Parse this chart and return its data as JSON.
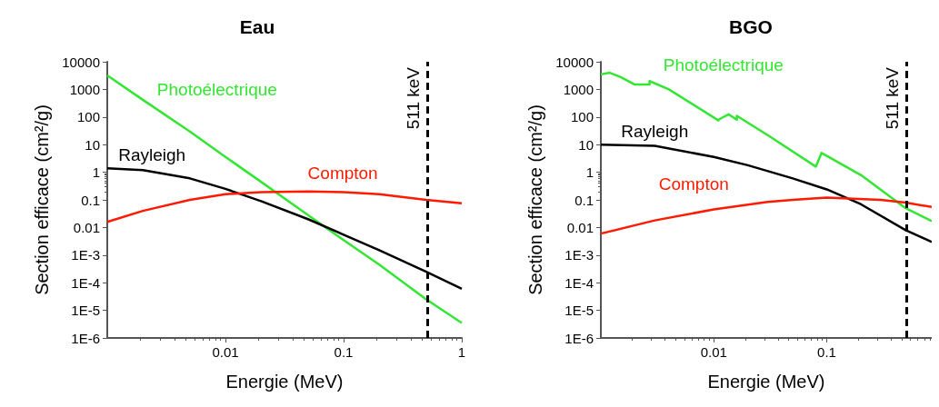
{
  "chart_data": [
    {
      "type": "line",
      "title": "Eau",
      "xlabel": "Energie (MeV)",
      "ylabel": "Section efficace (cm²/g)",
      "log": "xy",
      "grid": false,
      "legend": false,
      "marker": "none",
      "xlim": [
        0.001,
        1
      ],
      "xticks": [
        0.01,
        0.1,
        1
      ],
      "ylim": [
        1e-06,
        10000
      ],
      "yticks": [
        10000,
        1000,
        100,
        10,
        1,
        0.1,
        0.01,
        {
          "value": 0.001,
          "label": "1E-3"
        },
        {
          "value": 0.0001,
          "label": "1E-4"
        },
        {
          "value": 1e-05,
          "label": "1E-5"
        },
        {
          "value": 1e-06,
          "label": "1E-6"
        }
      ],
      "ref_lines": [
        {
          "axis": "x",
          "value": 0.511,
          "label": "511 keV",
          "line_style": "dashed",
          "color": "#000000"
        }
      ],
      "series": [
        {
          "name": "Photoélectrique",
          "color": "#33e633",
          "x": [
            0.001,
            0.002,
            0.005,
            0.01,
            0.02,
            0.05,
            0.1,
            0.2,
            0.5,
            1
          ],
          "values": [
            3200,
            420,
            30,
            3.6,
            0.45,
            0.028,
            0.0035,
            0.00045,
            2.5e-05,
            3.5e-06
          ]
        },
        {
          "name": "Rayleigh",
          "color": "#000000",
          "x": [
            0.001,
            0.002,
            0.005,
            0.01,
            0.02,
            0.05,
            0.1,
            0.2,
            0.5,
            1
          ],
          "values": [
            1.4,
            1.2,
            0.6,
            0.25,
            0.09,
            0.02,
            0.0055,
            0.0015,
            0.00025,
            6e-05
          ]
        },
        {
          "name": "Compton",
          "color": "#ff1a00",
          "x": [
            0.001,
            0.002,
            0.005,
            0.01,
            0.02,
            0.05,
            0.1,
            0.2,
            0.5,
            1
          ],
          "values": [
            0.016,
            0.04,
            0.1,
            0.16,
            0.19,
            0.2,
            0.19,
            0.16,
            0.1,
            0.075
          ]
        }
      ]
    },
    {
      "type": "line",
      "title": "BGO",
      "xlabel": "Energie (MeV)",
      "ylabel": "Section efficace (cm²/g)",
      "log": "xy",
      "grid": false,
      "legend": false,
      "marker": "none",
      "xlim": [
        0.001,
        0.85
      ],
      "xticks": [
        0.01,
        0.1
      ],
      "ylim": [
        1e-06,
        10000
      ],
      "yticks": [
        10000,
        1000,
        100,
        10,
        1,
        0.1,
        0.01,
        {
          "value": 0.001,
          "label": "1E-3"
        },
        {
          "value": 0.0001,
          "label": "1E-4"
        },
        {
          "value": 1e-05,
          "label": "1E-5"
        },
        {
          "value": 1e-06,
          "label": "1E-6"
        }
      ],
      "ref_lines": [
        {
          "axis": "x",
          "value": 0.511,
          "label": "511 keV",
          "line_style": "dashed",
          "color": "#000000"
        }
      ],
      "series": [
        {
          "name": "Photoélectrique",
          "color": "#33e633",
          "x": [
            0.001,
            0.0012,
            0.0015,
            0.002,
            0.0027,
            0.0027,
            0.004,
            0.011,
            0.011,
            0.0135,
            0.016,
            0.016,
            0.03,
            0.08,
            0.09,
            0.2,
            0.5,
            0.85
          ],
          "values": [
            3500,
            4000,
            2800,
            1500,
            1500,
            2000,
            1000,
            75,
            80,
            125,
            80,
            110,
            22,
            1.6,
            5,
            0.8,
            0.05,
            0.017
          ]
        },
        {
          "name": "Rayleigh",
          "color": "#000000",
          "x": [
            0.001,
            0.003,
            0.01,
            0.02,
            0.05,
            0.1,
            0.2,
            0.5,
            0.85
          ],
          "values": [
            10,
            9,
            3.6,
            1.8,
            0.6,
            0.24,
            0.07,
            0.008,
            0.003
          ]
        },
        {
          "name": "Compton",
          "color": "#ff1a00",
          "x": [
            0.001,
            0.003,
            0.01,
            0.03,
            0.05,
            0.1,
            0.3,
            0.5,
            0.85
          ],
          "values": [
            0.006,
            0.018,
            0.045,
            0.085,
            0.1,
            0.12,
            0.1,
            0.08,
            0.055
          ]
        }
      ]
    }
  ]
}
